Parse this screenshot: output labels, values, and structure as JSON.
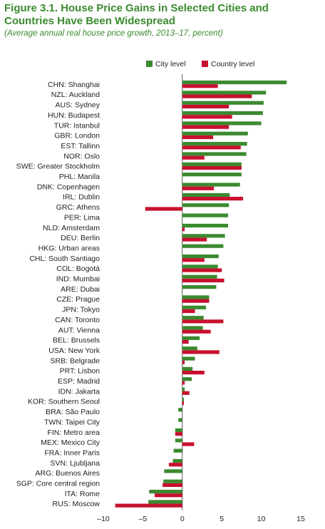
{
  "header": {
    "title_line1": "Figure 3.1. House Price Gains in Selected Cities and",
    "title_line2": "Countries Have Been Widespread",
    "subtitle": "(Average annual real house price growth, 2013–17, percent)"
  },
  "chart_data": {
    "type": "bar",
    "orientation": "horizontal",
    "xlim": [
      -10,
      15
    ],
    "xticks": [
      -10,
      -5,
      0,
      5,
      10,
      15
    ],
    "legend_position": "top",
    "grid": false,
    "categories": [
      "CHN: Shanghai",
      "NZL: Auckland",
      "AUS: Sydney",
      "HUN: Budapest",
      "TUR: Istanbul",
      "GBR: London",
      "EST: Tallinn",
      "NOR: Oslo",
      "SWE: Greater Stockholm",
      "PHL: Manila",
      "DNK: Copenhagen",
      "IRL: Dublin",
      "GRC: Athens",
      "PER: Lima",
      "NLD: Amsterdam",
      "DEU: Berlin",
      "HKG: Urban areas",
      "CHL: South Santiago",
      "COL: Bogotá",
      "IND: Mumbai",
      "ARE: Dubai",
      "CZE: Prague",
      "JPN: Tokyo",
      "CAN: Toronto",
      "AUT: Vienna",
      "BEL: Brussels",
      "USA: New York",
      "SRB: Belgrade",
      "PRT: Lisbon",
      "ESP: Madrid",
      "IDN: Jakarta",
      "KOR: Southern Seoul",
      "BRA: São Paulo",
      "TWN: Taipei City",
      "FIN: Metro area",
      "MEX: Mexico City",
      "FRA: Inner Paris",
      "SVN: Ljubljana",
      "ARG: Buenos Aires",
      "SGP: Core central region",
      "ITA: Rome",
      "RUS: Moscow"
    ],
    "series": [
      {
        "name": "City level",
        "color": "#3b8a2f",
        "values": [
          13.2,
          10.6,
          10.3,
          10.2,
          10.0,
          8.3,
          8.2,
          8.1,
          7.5,
          7.5,
          7.3,
          6.0,
          5.9,
          5.8,
          5.8,
          5.4,
          5.2,
          4.6,
          4.5,
          4.4,
          4.3,
          3.4,
          3.0,
          2.7,
          2.6,
          2.2,
          1.9,
          1.6,
          1.3,
          1.2,
          0.3,
          0.2,
          -0.5,
          -0.5,
          -0.9,
          -0.9,
          -1.1,
          -1.2,
          -2.3,
          -2.4,
          -4.2,
          -4.3
        ]
      },
      {
        "name": "Country level",
        "color": "#c8102e",
        "values": [
          4.5,
          8.8,
          5.9,
          6.3,
          5.9,
          3.9,
          7.4,
          2.8,
          7.5,
          0.0,
          4.0,
          7.7,
          -4.7,
          0.0,
          0.3,
          3.1,
          0.0,
          2.8,
          5.0,
          5.3,
          0.0,
          3.4,
          1.6,
          5.2,
          3.6,
          0.8,
          4.7,
          0.3,
          2.8,
          0.3,
          0.9,
          0.2,
          0.0,
          0.0,
          -0.9,
          1.5,
          0.0,
          -1.7,
          0.0,
          -2.5,
          -3.5,
          -8.5
        ]
      }
    ]
  }
}
